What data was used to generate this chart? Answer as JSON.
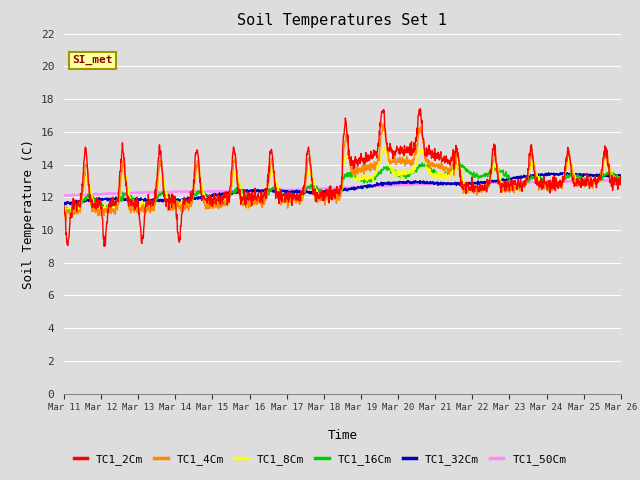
{
  "title": "Soil Temperatures Set 1",
  "xlabel": "Time",
  "ylabel": "Soil Temperature (C)",
  "ylim": [
    0,
    22
  ],
  "yticks": [
    0,
    2,
    4,
    6,
    8,
    10,
    12,
    14,
    16,
    18,
    20,
    22
  ],
  "annotation": "SI_met",
  "annotation_color": "#8B0000",
  "annotation_bg": "#FFFFA0",
  "annotation_border": "#999900",
  "series_colors": {
    "TC1_2Cm": "#FF0000",
    "TC1_4Cm": "#FF8800",
    "TC1_8Cm": "#FFFF00",
    "TC1_16Cm": "#00CC00",
    "TC1_32Cm": "#0000BB",
    "TC1_50Cm": "#FF88FF"
  },
  "bg_color": "#DDDDDD",
  "plot_bg": "#DDDDDD",
  "grid_color": "#FFFFFF",
  "linewidth": 1.0,
  "n_points": 1440,
  "days": 15,
  "start_day": 11
}
